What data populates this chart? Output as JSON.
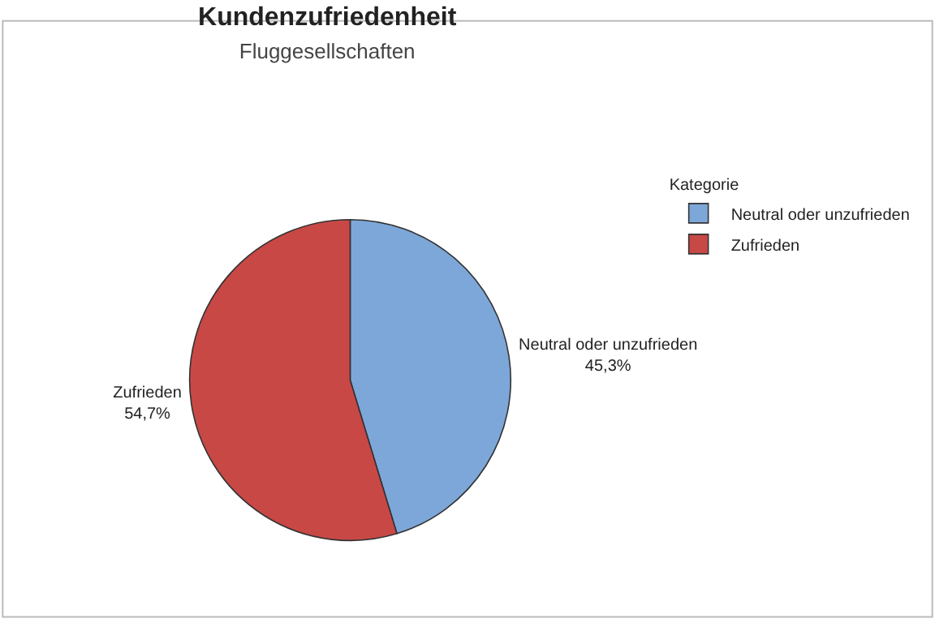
{
  "chart_data": {
    "type": "pie",
    "title": "Kundenzufriedenheit",
    "subtitle": "Fluggesellschaften",
    "legend_title": "Kategorie",
    "legend": "top right",
    "categories": [
      "Neutral oder unzufrieden",
      "Zufrieden"
    ],
    "values": [
      45.3,
      54.7
    ],
    "colors": [
      "#7da7d9",
      "#c84846"
    ],
    "value_labels": [
      "45,3%",
      "54,7%"
    ]
  }
}
